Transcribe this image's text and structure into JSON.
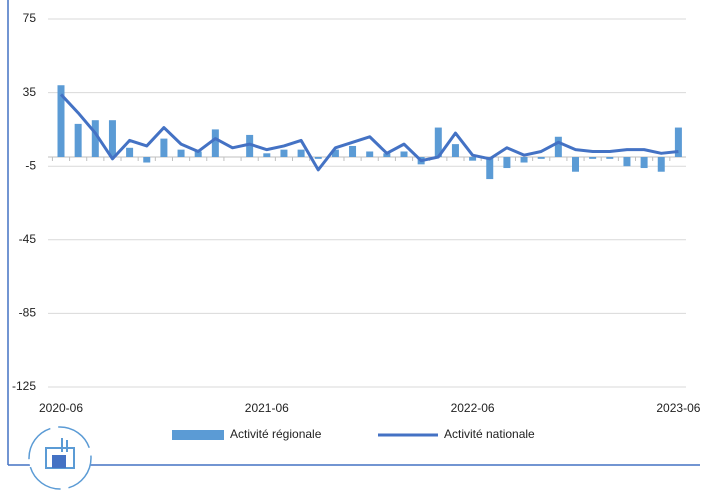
{
  "chart_data": {
    "type": "bar-line",
    "categories": [
      "2020-06",
      null,
      null,
      null,
      null,
      null,
      null,
      null,
      null,
      null,
      null,
      null,
      "2021-06",
      null,
      null,
      null,
      null,
      null,
      null,
      null,
      null,
      null,
      null,
      null,
      "2022-06",
      null,
      null,
      null,
      null,
      null,
      null,
      null,
      null,
      null,
      null,
      null,
      "2023-06"
    ],
    "series": [
      {
        "name": "Activité régionale",
        "type": "bar",
        "color": "#5b9bd5",
        "values": [
          39,
          18,
          20,
          20,
          5,
          -3,
          10,
          4,
          3,
          15,
          0,
          12,
          2,
          4,
          4,
          -1,
          4,
          6,
          3,
          2,
          3,
          -4,
          16,
          7,
          -2,
          -12,
          -6,
          -3,
          -1,
          11,
          -8,
          -1,
          -1,
          -5,
          -6,
          -8,
          16
        ]
      },
      {
        "name": "Activité nationale",
        "type": "line",
        "color": "#4472c4",
        "values": [
          34,
          24,
          13,
          -1,
          9,
          6,
          16,
          7,
          3,
          10,
          5,
          7,
          4,
          6,
          9,
          -7,
          5,
          8,
          11,
          2,
          7,
          -2,
          0,
          13,
          1,
          -1,
          5,
          1,
          3,
          8,
          4,
          3,
          3,
          4,
          4,
          2,
          3
        ]
      }
    ],
    "ylim": [
      -125,
      75
    ],
    "yticks": [
      -125,
      -85,
      -45,
      -5,
      35,
      75
    ],
    "grid": true
  }
}
